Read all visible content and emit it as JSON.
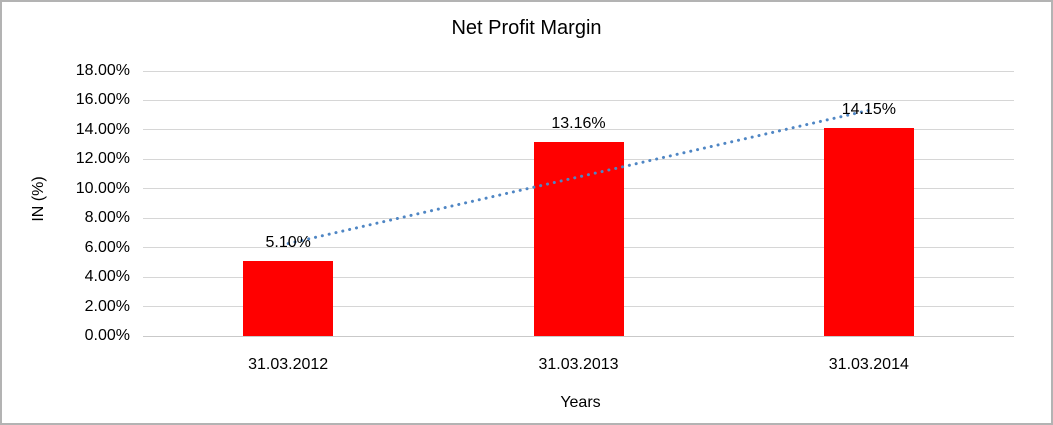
{
  "window": {
    "background": "#ffffff",
    "border_color": "#b3b3b3"
  },
  "chart_data": {
    "type": "bar",
    "title": "Net Profit Margin",
    "categories": [
      "31.03.2012",
      "31.03.2013",
      "31.03.2014"
    ],
    "values": [
      5.1,
      13.16,
      14.15
    ],
    "data_labels": [
      "5.10%",
      "13.16%",
      "14.15%"
    ],
    "xlabel": "Years",
    "ylabel": "IN (%)",
    "ylim": [
      0,
      18
    ],
    "ytick_step": 2,
    "ytick_labels": [
      "0.00%",
      "2.00%",
      "4.00%",
      "6.00%",
      "8.00%",
      "10.00%",
      "12.00%",
      "14.00%",
      "16.00%",
      "18.00%"
    ],
    "grid": true,
    "legend": "none",
    "bar_color": "#ff0000",
    "gridline_color": "#d6d6d6",
    "axis_line_color": "#c9c9c9",
    "text_color": "#000000",
    "trendline": {
      "type": "linear",
      "style": "dotted",
      "color": "#4f86c4"
    }
  }
}
